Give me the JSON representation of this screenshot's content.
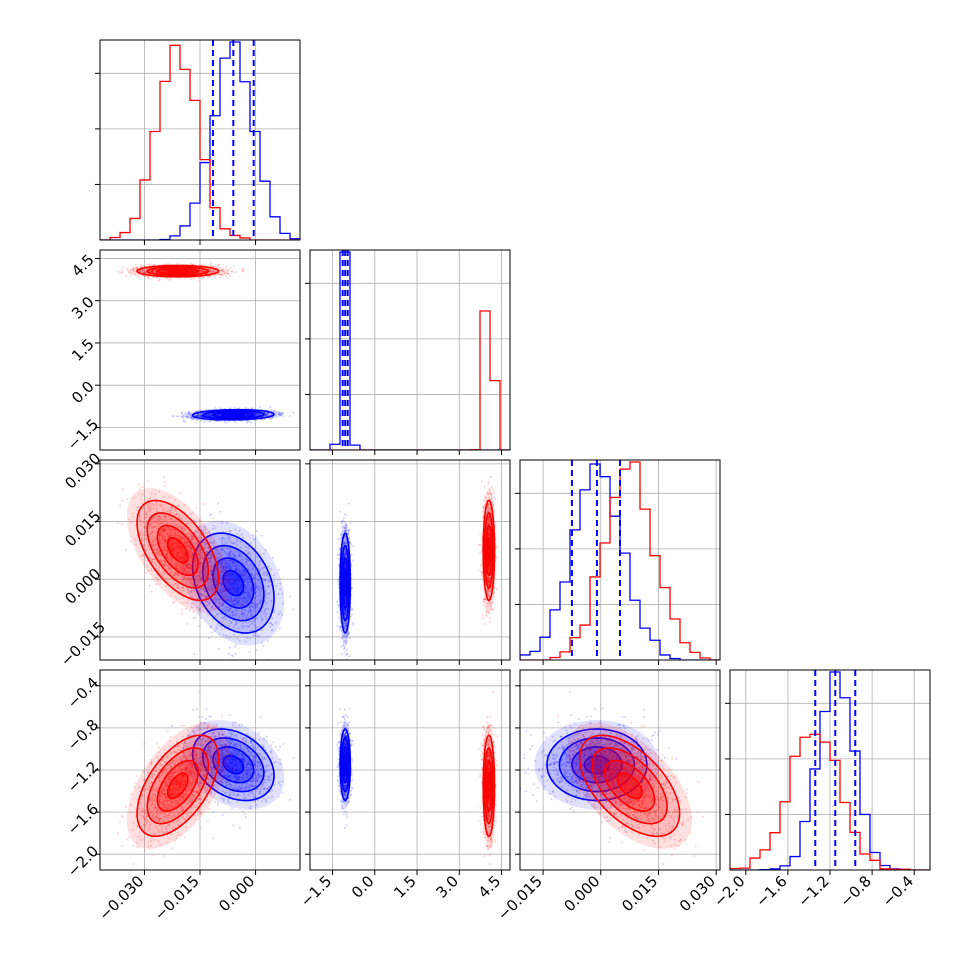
{
  "chart_data": {
    "type": "corner",
    "colors": {
      "blue": "#0000ff",
      "red": "#ff0000"
    },
    "grid": true,
    "series": [
      {
        "color": "blue",
        "mean": [
          -0.006,
          -1.05,
          -0.001,
          -1.15
        ],
        "sd": [
          0.0055,
          0.09,
          0.0065,
          0.17
        ],
        "corr": [
          [
            1,
            0.1,
            -0.3,
            -0.3
          ],
          [
            0.1,
            1,
            0,
            0
          ],
          [
            -0.3,
            0,
            1,
            0
          ],
          [
            -0.3,
            0,
            0,
            1
          ]
        ],
        "quantiles_1d": [
          [
            -0.0115,
            -0.006,
            -0.0005
          ],
          [
            -1.14,
            -1.05,
            -0.96
          ],
          [
            -0.0075,
            -0.001,
            0.005
          ],
          [
            -1.34,
            -1.15,
            -0.96
          ]
        ]
      },
      {
        "color": "red",
        "mean": [
          -0.021,
          4.05,
          0.0075,
          -1.35
        ],
        "sd": [
          0.0055,
          0.1,
          0.0065,
          0.24
        ],
        "corr": [
          [
            1,
            0,
            -0.55,
            0.55
          ],
          [
            0,
            1,
            0,
            0
          ],
          [
            -0.55,
            0,
            1,
            -0.55
          ],
          [
            0.55,
            0,
            -0.55,
            1
          ]
        ]
      }
    ],
    "axes": [
      {
        "range": [
          -0.042,
          0.012
        ],
        "ticks": [
          -0.03,
          -0.015,
          0.0
        ],
        "tick_labels": [
          "−0.030",
          "−0.015",
          "0.000"
        ]
      },
      {
        "range": [
          -2.3,
          4.8
        ],
        "ticks": [
          -1.5,
          0.0,
          1.5,
          3.0,
          4.5
        ],
        "tick_labels": [
          "−1.5",
          "0.0",
          "1.5",
          "3.0",
          "4.5"
        ]
      },
      {
        "range": [
          -0.021,
          0.031
        ],
        "ticks": [
          -0.015,
          0.0,
          0.015,
          0.03
        ],
        "tick_labels": [
          "−0.015",
          "0.000",
          "0.015",
          "0.030"
        ]
      },
      {
        "range": [
          -2.15,
          -0.25
        ],
        "ticks": [
          -2.0,
          -1.6,
          -1.2,
          -0.8,
          -0.4
        ],
        "tick_labels": [
          "−2.0",
          "−1.6",
          "−1.2",
          "−0.8",
          "−0.4"
        ]
      }
    ]
  }
}
